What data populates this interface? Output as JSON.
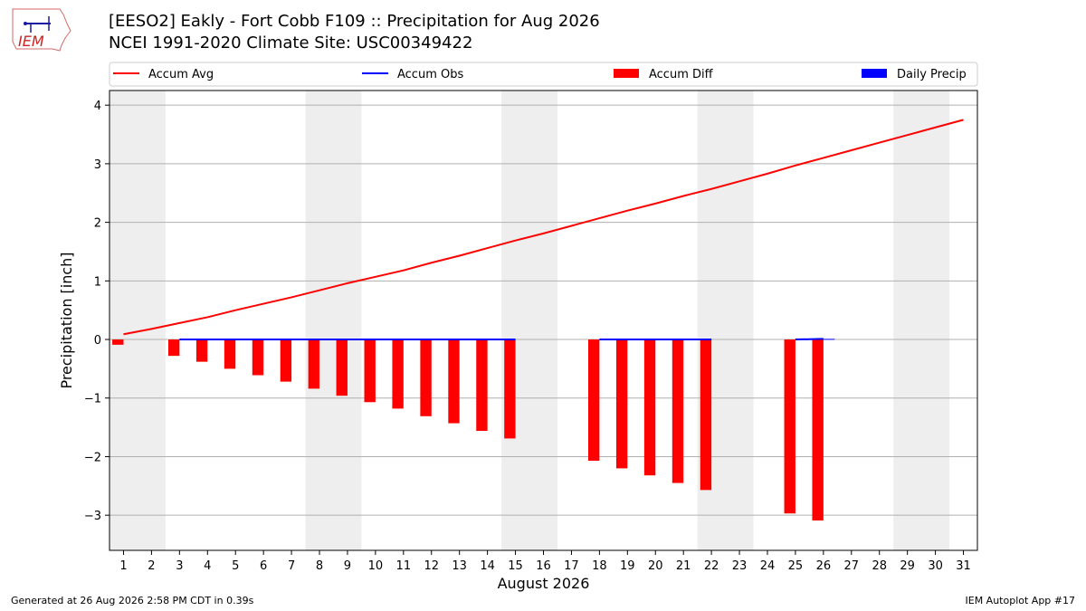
{
  "header": {
    "title_line1": "[EESO2] Eakly - Fort Cobb F109 :: Precipitation for Aug 2026",
    "title_line2": "NCEI 1991-2020 Climate Site: USC00349422",
    "logo_text": "IEM"
  },
  "footer": {
    "generated": "Generated at 26 Aug 2026 2:58 PM CDT in 0.39s",
    "app": "IEM Autoplot App #17"
  },
  "colors": {
    "accum_avg": "#ff0000",
    "accum_obs": "#0000ff",
    "accum_diff": "#ff0000",
    "daily_precip": "#0000ff",
    "weekend_shade": "#eeeeee",
    "grid": "#b0b0b0"
  },
  "chart_data": {
    "type": "bar",
    "xlabel": "August 2026",
    "ylabel": "Precipitation [inch]",
    "xlim": [
      0.5,
      31.5
    ],
    "ylim": [
      -3.6,
      4.25
    ],
    "yticks": [
      -3,
      -2,
      -1,
      0,
      1,
      2,
      3,
      4
    ],
    "ytick_labels": [
      "−3",
      "−2",
      "−1",
      "0",
      "1",
      "2",
      "3",
      "4"
    ],
    "x": [
      1,
      2,
      3,
      4,
      5,
      6,
      7,
      8,
      9,
      10,
      11,
      12,
      13,
      14,
      15,
      16,
      17,
      18,
      19,
      20,
      21,
      22,
      23,
      24,
      25,
      26,
      27,
      28,
      29,
      30,
      31
    ],
    "legend_position": "top",
    "grid": "horizontal",
    "shaded_weekends": [
      [
        0.5,
        2.5
      ],
      [
        7.5,
        9.5
      ],
      [
        14.5,
        16.5
      ],
      [
        21.5,
        23.5
      ],
      [
        28.5,
        30.5
      ]
    ],
    "legend": [
      {
        "label": "Accum Avg",
        "kind": "line",
        "color": "#ff0000"
      },
      {
        "label": "Accum Obs",
        "kind": "line",
        "color": "#0000ff"
      },
      {
        "label": "Accum Diff",
        "kind": "bar",
        "color": "#ff0000"
      },
      {
        "label": "Daily Precip",
        "kind": "bar",
        "color": "#0000ff"
      }
    ],
    "series": [
      {
        "name": "Accum Avg",
        "type": "line",
        "color": "#ff0000",
        "x": [
          1,
          2,
          3,
          4,
          5,
          6,
          7,
          8,
          9,
          10,
          11,
          12,
          13,
          14,
          15,
          16,
          17,
          18,
          19,
          20,
          21,
          22,
          23,
          24,
          25,
          26,
          27,
          28,
          29,
          30,
          31
        ],
        "values": [
          0.09,
          0.18,
          0.28,
          0.38,
          0.5,
          0.61,
          0.72,
          0.84,
          0.96,
          1.07,
          1.18,
          1.31,
          1.43,
          1.56,
          1.69,
          1.81,
          1.94,
          2.07,
          2.2,
          2.32,
          2.45,
          2.57,
          2.7,
          2.83,
          2.97,
          3.1,
          3.23,
          3.36,
          3.49,
          3.62,
          3.75
        ]
      },
      {
        "name": "Accum Obs",
        "type": "line",
        "color": "#0000ff",
        "segments": [
          {
            "x": [
              3,
              4,
              5,
              6,
              7,
              8,
              9,
              10,
              11,
              12,
              13,
              14,
              15
            ],
            "values": [
              0,
              0,
              0,
              0,
              0,
              0,
              0,
              0,
              0,
              0,
              0,
              0,
              0
            ]
          },
          {
            "x": [
              18,
              19,
              20,
              21,
              22
            ],
            "values": [
              0,
              0,
              0,
              0,
              0
            ]
          },
          {
            "x": [
              25,
              26
            ],
            "values": [
              0,
              0.01
            ]
          }
        ]
      },
      {
        "name": "Accum Diff",
        "type": "bar",
        "color": "#ff0000",
        "x": [
          1,
          3,
          4,
          5,
          6,
          7,
          8,
          9,
          10,
          11,
          12,
          13,
          14,
          15,
          18,
          19,
          20,
          21,
          22,
          25,
          26
        ],
        "values": [
          -0.09,
          -0.28,
          -0.38,
          -0.5,
          -0.61,
          -0.72,
          -0.84,
          -0.96,
          -1.07,
          -1.18,
          -1.31,
          -1.43,
          -1.56,
          -1.69,
          -2.07,
          -2.2,
          -2.32,
          -2.45,
          -2.57,
          -2.97,
          -3.09
        ]
      },
      {
        "name": "Daily Precip",
        "type": "bar",
        "color": "#0000ff",
        "x": [
          26
        ],
        "values": [
          0.01
        ]
      }
    ]
  }
}
